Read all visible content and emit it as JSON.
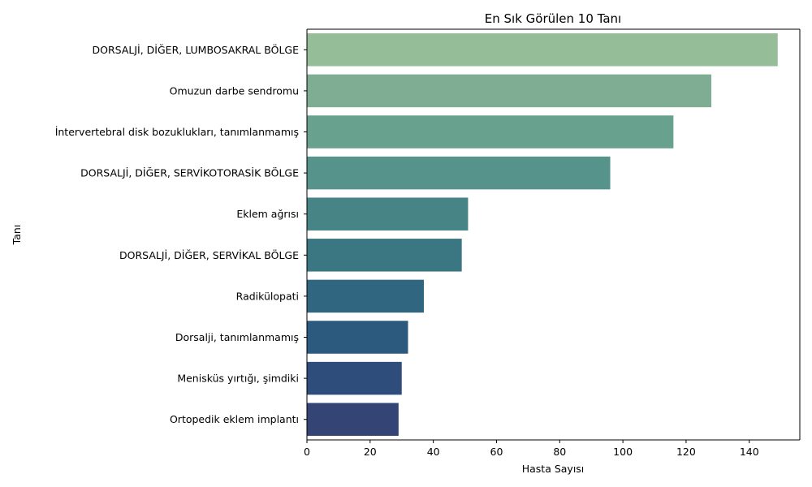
{
  "chart_data": {
    "type": "bar",
    "orientation": "horizontal",
    "title": "En Sık Görülen 10 Tanı",
    "xlabel": "Hasta Sayısı",
    "ylabel": "Tanı",
    "xlim": [
      0,
      156
    ],
    "xticks": [
      0,
      20,
      40,
      60,
      80,
      100,
      120,
      140
    ],
    "grid": false,
    "categories": [
      "DORSALJİ, DİĞER, LUMBOSAKRAL BÖLGE",
      "Omuzun darbe sendromu",
      "İntervertebral disk bozuklukları, tanımlanmamış",
      "DORSALJİ, DİĞER, SERVİKOTORASİK BÖLGE",
      "Eklem ağrısı",
      "DORSALJİ, DİĞER, SERVİKAL BÖLGE",
      "Radikülopati",
      "Dorsalji, tanımlanmamış",
      "Menisküs yırtığı, şimdiki",
      "Ortopedik eklem implantı"
    ],
    "values": [
      149,
      128,
      116,
      96,
      51,
      49,
      37,
      32,
      30,
      29
    ],
    "colors": [
      "#95bd98",
      "#7fad93",
      "#68a28e",
      "#56938a",
      "#478485",
      "#3b7683",
      "#30667f",
      "#2c5a7e",
      "#2f4d7b",
      "#334475"
    ]
  }
}
